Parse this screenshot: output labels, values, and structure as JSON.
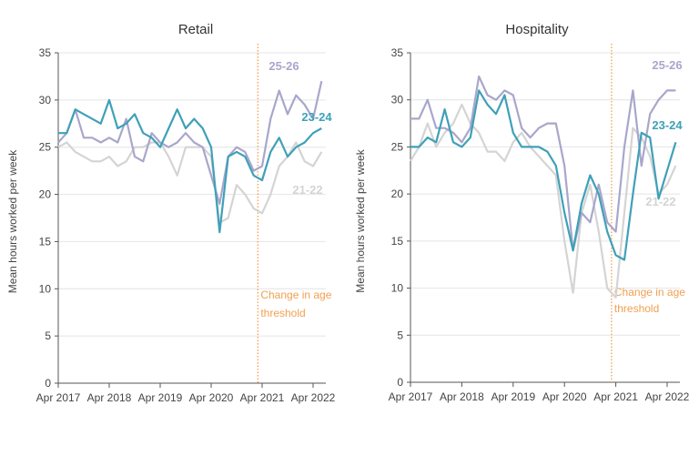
{
  "chart_data": [
    {
      "type": "line",
      "title": "Retail",
      "ylabel": "Mean hours worked per week",
      "xlabel": "",
      "ylim": [
        0,
        35
      ],
      "yticks": [
        "0",
        "5",
        "10",
        "15",
        "20",
        "25",
        "30",
        "35"
      ],
      "xticks": [
        "Apr 2017",
        "Apr 2018",
        "Apr 2019",
        "Apr 2020",
        "Apr 2021",
        "Apr 2022"
      ],
      "grid": "horizontal",
      "annotation": {
        "label_line1": "Change in age",
        "label_line2": "threshold",
        "date": "2021-03",
        "color": "#f0a050"
      },
      "x": [
        "2017-04",
        "2017-06",
        "2017-08",
        "2017-10",
        "2017-12",
        "2018-02",
        "2018-04",
        "2018-06",
        "2018-08",
        "2018-10",
        "2018-12",
        "2019-02",
        "2019-04",
        "2019-06",
        "2019-08",
        "2019-10",
        "2019-12",
        "2020-02",
        "2020-04",
        "2020-06",
        "2020-08",
        "2020-10",
        "2020-12",
        "2021-02",
        "2021-04",
        "2021-06",
        "2021-08",
        "2021-10",
        "2021-12",
        "2022-02",
        "2022-04",
        "2022-06"
      ],
      "series": [
        {
          "name": "21-22",
          "color": "#d4d4d4",
          "values": [
            25,
            25.5,
            24.5,
            24,
            23.5,
            23.5,
            24,
            23,
            23.5,
            25,
            25,
            25.5,
            25.5,
            24,
            22,
            25,
            25,
            25,
            24,
            17,
            17.5,
            21,
            20,
            18.5,
            18,
            20,
            23,
            24,
            25.5,
            23.5,
            23,
            24.5
          ]
        },
        {
          "name": "25-26",
          "color": "#a9a6cc",
          "values": [
            25.5,
            26.5,
            29,
            26,
            26,
            25.5,
            26,
            25.5,
            28,
            24,
            23.5,
            26.5,
            25.5,
            25,
            25.5,
            26.5,
            25.5,
            25,
            22,
            19,
            24,
            25,
            24.5,
            22.5,
            23,
            28,
            31,
            28.5,
            30.5,
            29.5,
            28,
            32
          ]
        },
        {
          "name": "23-24",
          "color": "#3fa0b8",
          "values": [
            26.5,
            26.5,
            29,
            28.5,
            28,
            27.5,
            30,
            27,
            27.5,
            28.5,
            26.5,
            26,
            25,
            27,
            29,
            27,
            28,
            27,
            25,
            16,
            24,
            24.5,
            24,
            22,
            21.5,
            24.5,
            26,
            24,
            25,
            25.5,
            26.5,
            27
          ]
        }
      ]
    },
    {
      "type": "line",
      "title": "Hospitality",
      "ylabel": "Mean hours worked per week",
      "xlabel": "",
      "ylim": [
        0,
        35
      ],
      "yticks": [
        "0",
        "5",
        "10",
        "15",
        "20",
        "25",
        "30",
        "35"
      ],
      "xticks": [
        "Apr 2017",
        "Apr 2018",
        "Apr 2019",
        "Apr 2020",
        "Apr 2021",
        "Apr 2022"
      ],
      "grid": "horizontal",
      "annotation": {
        "label_line1": "Change in age",
        "label_line2": "threshold",
        "date": "2021-03",
        "color": "#f0a050"
      },
      "x": [
        "2017-04",
        "2017-06",
        "2017-08",
        "2017-10",
        "2017-12",
        "2018-02",
        "2018-04",
        "2018-06",
        "2018-08",
        "2018-10",
        "2018-12",
        "2019-02",
        "2019-04",
        "2019-06",
        "2019-08",
        "2019-10",
        "2019-12",
        "2020-02",
        "2020-04",
        "2020-06",
        "2020-08",
        "2020-10",
        "2020-12",
        "2021-02",
        "2021-04",
        "2021-06",
        "2021-08",
        "2021-10",
        "2021-12",
        "2022-02",
        "2022-04",
        "2022-06"
      ],
      "series": [
        {
          "name": "21-22",
          "color": "#d4d4d4",
          "values": [
            23.5,
            25,
            27.5,
            25,
            26.5,
            27.5,
            29.5,
            27.5,
            26.5,
            24.5,
            24.5,
            23.5,
            25.5,
            26.5,
            25,
            24,
            23,
            22,
            15,
            9.5,
            18,
            21,
            16,
            10,
            9,
            18,
            27,
            26,
            24,
            20,
            21,
            23
          ]
        },
        {
          "name": "25-26",
          "color": "#a9a6cc",
          "values": [
            28,
            28,
            30,
            27,
            27,
            26.5,
            25.5,
            27,
            32.5,
            30.5,
            30,
            31,
            30.5,
            27,
            26,
            27,
            27.5,
            27.5,
            23,
            14,
            18,
            17,
            21,
            17,
            16,
            25,
            31,
            23,
            28.5,
            30,
            31,
            31
          ]
        },
        {
          "name": "23-24",
          "color": "#3fa0b8",
          "values": [
            25,
            25,
            26,
            25.5,
            29,
            25.5,
            25,
            26,
            31,
            29.5,
            28.5,
            30.5,
            26.5,
            25,
            25,
            25,
            24.5,
            23,
            18,
            14,
            19,
            22,
            20,
            16,
            13.5,
            13,
            20,
            26.5,
            26,
            19.5,
            22.5,
            25.5
          ]
        }
      ]
    }
  ]
}
